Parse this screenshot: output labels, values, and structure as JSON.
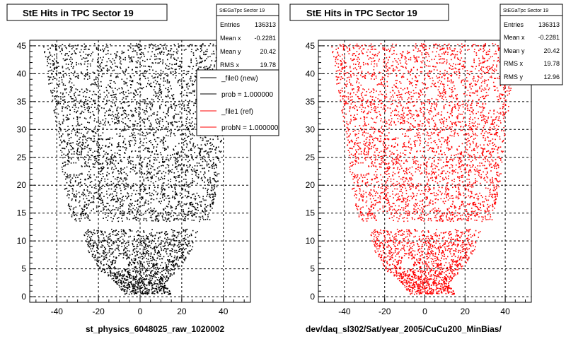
{
  "panels": [
    {
      "title": "StE Hits in TPC Sector 19",
      "xlabel": "st_physics_6048025_raw_1020002",
      "stats": {
        "name": "StEGaTpc Sector 19",
        "rows": [
          {
            "label": "Entries",
            "value": "136313"
          },
          {
            "label": "Mean x",
            "value": "-0.2281"
          },
          {
            "label": "Mean y",
            "value": "20.42"
          },
          {
            "label": "RMS x",
            "value": "19.78"
          }
        ]
      },
      "legend": [
        {
          "label": "_file0 (new)",
          "color": "#000000"
        },
        {
          "label": "prob = 1.000000",
          "color": "#000000"
        },
        {
          "label": "_file1 (ref)",
          "color": "#ff0000"
        },
        {
          "label": "probN = 1.000000",
          "color": "#ff0000"
        }
      ]
    },
    {
      "title": "StE Hits in TPC Sector 19",
      "xlabel": "dev/daq_sl302/Sat/year_2005/CuCu200_MinBias/",
      "stats": {
        "name": "StEGaTpc Sector 19",
        "rows": [
          {
            "label": "Entries",
            "value": "136313"
          },
          {
            "label": "Mean x",
            "value": "-0.2281"
          },
          {
            "label": "Mean y",
            "value": "20.42"
          },
          {
            "label": "RMS x",
            "value": "19.78"
          },
          {
            "label": "RMS y",
            "value": "12.96"
          }
        ]
      },
      "legend": []
    }
  ],
  "chart_data": [
    {
      "type": "scatter",
      "title": "StE Hits in TPC Sector 19",
      "xlabel": "st_physics_6048025_raw_1020002",
      "ylabel": "",
      "xlim": [
        -53,
        53
      ],
      "ylim": [
        -1,
        46
      ],
      "xticks": [
        -40,
        -20,
        0,
        20,
        40
      ],
      "yticks": [
        0,
        5,
        10,
        15,
        20,
        25,
        30,
        35,
        40,
        45
      ],
      "grid": true,
      "color": "#000000",
      "profile": [
        {
          "y": 0.5,
          "xmin": -8,
          "xmax": 15
        },
        {
          "y": 2.5,
          "xmin": -12,
          "xmax": 12
        },
        {
          "y": 5,
          "xmin": -20,
          "xmax": 18
        },
        {
          "y": 8,
          "xmin": -25,
          "xmax": 24
        },
        {
          "y": 12.2,
          "xmin": -28,
          "xmax": 28
        },
        {
          "y": 13.6,
          "xmin": -33,
          "xmax": 33
        },
        {
          "y": 20,
          "xmin": -37,
          "xmax": 37
        },
        {
          "y": 30,
          "xmin": -40,
          "xmax": 40
        },
        {
          "y": 38,
          "xmin": -44,
          "xmax": 43
        },
        {
          "y": 45.5,
          "xmin": -47,
          "xmax": 47
        }
      ],
      "gap_y": [
        12.2,
        13.6
      ]
    },
    {
      "type": "scatter",
      "title": "StE Hits in TPC Sector 19",
      "xlabel": "dev/daq_sl302/Sat/year_2005/CuCu200_MinBias/",
      "ylabel": "",
      "xlim": [
        -53,
        53
      ],
      "ylim": [
        -1,
        46
      ],
      "xticks": [
        -40,
        -20,
        0,
        20,
        40
      ],
      "yticks": [
        0,
        5,
        10,
        15,
        20,
        25,
        30,
        35,
        40,
        45
      ],
      "grid": true,
      "color": "#ff0000",
      "profile": [
        {
          "y": 0.5,
          "xmin": -8,
          "xmax": 15
        },
        {
          "y": 2.5,
          "xmin": -12,
          "xmax": 12
        },
        {
          "y": 5,
          "xmin": -20,
          "xmax": 18
        },
        {
          "y": 8,
          "xmin": -25,
          "xmax": 24
        },
        {
          "y": 12.2,
          "xmin": -28,
          "xmax": 28
        },
        {
          "y": 13.6,
          "xmin": -33,
          "xmax": 33
        },
        {
          "y": 20,
          "xmin": -37,
          "xmax": 37
        },
        {
          "y": 30,
          "xmin": -40,
          "xmax": 40
        },
        {
          "y": 38,
          "xmin": -44,
          "xmax": 43
        },
        {
          "y": 45.5,
          "xmin": -47,
          "xmax": 47
        }
      ],
      "gap_y": [
        12.2,
        13.6
      ]
    }
  ]
}
